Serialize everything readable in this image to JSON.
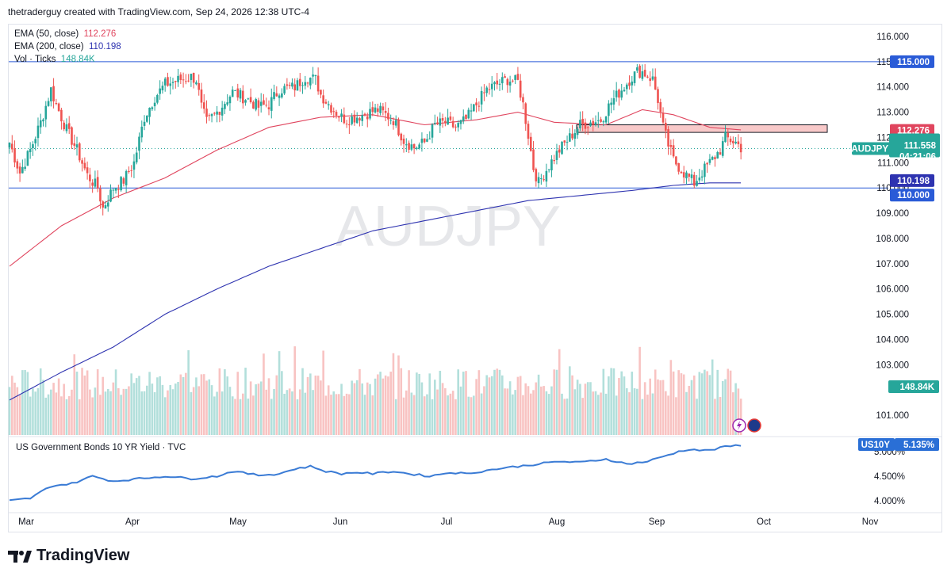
{
  "header": {
    "attribution": "thetraderguy created with TradingView.com, Sep 24, 2026 12:38 UTC-4"
  },
  "legend": {
    "ema50_label": "EMA (50, close)",
    "ema50_value": "112.276",
    "ema200_label": "EMA (200, close)",
    "ema200_value": "110.198",
    "vol_label": "Vol · Ticks",
    "vol_value": "148.84K"
  },
  "watermark": "AUDJPY",
  "price_axis": {
    "ticks": [
      "116.000",
      "115.000",
      "114.000",
      "113.000",
      "112.000",
      "111.000",
      "110.000",
      "109.000",
      "108.000",
      "107.000",
      "106.000",
      "105.000",
      "104.000",
      "103.000",
      "101.000"
    ],
    "tags": {
      "resistance": "115.000",
      "ema50": "112.276",
      "symbol": "AUDJPY",
      "last_price": "111.558",
      "countdown": "04:21:06",
      "ema200": "110.198",
      "support": "110.000",
      "volume": "148.84K"
    }
  },
  "x_axis": {
    "months": [
      "Mar",
      "Apr",
      "May",
      "Jun",
      "Jul",
      "Aug",
      "Sep",
      "Oct",
      "Nov"
    ]
  },
  "lower_pane": {
    "title": "US Government Bonds 10 YR Yield · TVC",
    "symbol": "US10Y",
    "last_value": "5.135%",
    "ticks": [
      "5.000%",
      "4.500%",
      "4.000%"
    ]
  },
  "brand": {
    "name": "TradingView"
  },
  "colors": {
    "up": "#26a69a",
    "down": "#ef5350",
    "ema50": "#e0455e",
    "ema200": "#2e33b0",
    "yield": "#3a7bd5",
    "zone": "#f8c9c9"
  },
  "chart_data": {
    "type": "candlestick",
    "symbol": "AUDJPY",
    "ylim": [
      100.3,
      116.6
    ],
    "levels": [
      115.0,
      110.0
    ],
    "zone": [
      112.2,
      112.5
    ],
    "anchors": [
      [
        0,
        111.8
      ],
      [
        4,
        110.6
      ],
      [
        8,
        111.5
      ],
      [
        12,
        112.6
      ],
      [
        16,
        113.9
      ],
      [
        18,
        113.3
      ],
      [
        22,
        112.3
      ],
      [
        26,
        111.5
      ],
      [
        30,
        110.5
      ],
      [
        34,
        110.0
      ],
      [
        36,
        109.2
      ],
      [
        40,
        110.0
      ],
      [
        44,
        110.3
      ],
      [
        48,
        111.0
      ],
      [
        52,
        112.8
      ],
      [
        56,
        113.6
      ],
      [
        60,
        114.1
      ],
      [
        66,
        114.3
      ],
      [
        70,
        114.4
      ],
      [
        72,
        114.3
      ],
      [
        74,
        113.2
      ],
      [
        76,
        112.6
      ],
      [
        80,
        113.0
      ],
      [
        86,
        113.8
      ],
      [
        90,
        113.6
      ],
      [
        92,
        113.5
      ],
      [
        96,
        113.2
      ],
      [
        100,
        113.3
      ],
      [
        104,
        113.9
      ],
      [
        110,
        114.0
      ],
      [
        114,
        114.4
      ],
      [
        118,
        114.3
      ],
      [
        120,
        113.7
      ],
      [
        124,
        113.2
      ],
      [
        128,
        112.8
      ],
      [
        130,
        112.7
      ],
      [
        136,
        112.9
      ],
      [
        142,
        113.1
      ],
      [
        148,
        112.7
      ],
      [
        152,
        111.9
      ],
      [
        156,
        111.6
      ],
      [
        160,
        111.8
      ],
      [
        164,
        112.5
      ],
      [
        168,
        112.6
      ],
      [
        172,
        112.4
      ],
      [
        176,
        112.7
      ],
      [
        180,
        113.3
      ],
      [
        184,
        113.9
      ],
      [
        188,
        114.1
      ],
      [
        192,
        114.3
      ],
      [
        196,
        114.2
      ],
      [
        198,
        113.3
      ],
      [
        200,
        112.1
      ],
      [
        202,
        110.8
      ],
      [
        204,
        110.2
      ],
      [
        208,
        110.9
      ],
      [
        212,
        111.5
      ],
      [
        216,
        112.0
      ],
      [
        220,
        112.5
      ],
      [
        224,
        112.6
      ],
      [
        228,
        112.7
      ],
      [
        232,
        113.4
      ],
      [
        236,
        113.9
      ],
      [
        240,
        114.4
      ],
      [
        242,
        114.6
      ],
      [
        244,
        114.6
      ],
      [
        248,
        114.3
      ],
      [
        250,
        113.5
      ],
      [
        252,
        112.4
      ],
      [
        254,
        111.7
      ],
      [
        256,
        111.1
      ],
      [
        260,
        110.6
      ],
      [
        264,
        110.2
      ],
      [
        266,
        110.5
      ],
      [
        270,
        111.0
      ],
      [
        274,
        111.5
      ],
      [
        276,
        112.0
      ],
      [
        280,
        111.8
      ],
      [
        282,
        111.6
      ]
    ],
    "ema50": [
      [
        0,
        106.9
      ],
      [
        20,
        108.5
      ],
      [
        40,
        109.6
      ],
      [
        60,
        110.4
      ],
      [
        80,
        111.5
      ],
      [
        100,
        112.4
      ],
      [
        120,
        112.8
      ],
      [
        140,
        112.9
      ],
      [
        160,
        112.5
      ],
      [
        180,
        112.7
      ],
      [
        196,
        113.0
      ],
      [
        210,
        112.6
      ],
      [
        230,
        112.5
      ],
      [
        244,
        113.1
      ],
      [
        256,
        112.9
      ],
      [
        270,
        112.4
      ],
      [
        282,
        112.3
      ]
    ],
    "ema200": [
      [
        0,
        101.6
      ],
      [
        20,
        102.7
      ],
      [
        40,
        103.7
      ],
      [
        60,
        105.0
      ],
      [
        80,
        106.0
      ],
      [
        100,
        106.9
      ],
      [
        120,
        107.6
      ],
      [
        140,
        108.3
      ],
      [
        160,
        108.7
      ],
      [
        180,
        109.1
      ],
      [
        200,
        109.5
      ],
      [
        220,
        109.7
      ],
      [
        240,
        109.9
      ],
      [
        256,
        110.1
      ],
      [
        270,
        110.2
      ],
      [
        282,
        110.2
      ]
    ],
    "volume_units": "ticks",
    "last_volume": 148840,
    "us10y": {
      "ylim": [
        3.7,
        5.3
      ],
      "points": [
        [
          0,
          4.0
        ],
        [
          8,
          4.05
        ],
        [
          16,
          4.3
        ],
        [
          24,
          4.35
        ],
        [
          32,
          4.5
        ],
        [
          40,
          4.4
        ],
        [
          50,
          4.45
        ],
        [
          60,
          4.5
        ],
        [
          70,
          4.45
        ],
        [
          80,
          4.5
        ],
        [
          86,
          4.6
        ],
        [
          96,
          4.52
        ],
        [
          104,
          4.55
        ],
        [
          110,
          4.65
        ],
        [
          116,
          4.7
        ],
        [
          122,
          4.6
        ],
        [
          128,
          4.55
        ],
        [
          134,
          4.58
        ],
        [
          140,
          4.55
        ],
        [
          148,
          4.6
        ],
        [
          154,
          4.55
        ],
        [
          162,
          4.5
        ],
        [
          170,
          4.58
        ],
        [
          176,
          4.55
        ],
        [
          182,
          4.6
        ],
        [
          188,
          4.65
        ],
        [
          196,
          4.7
        ],
        [
          204,
          4.75
        ],
        [
          212,
          4.8
        ],
        [
          220,
          4.78
        ],
        [
          230,
          4.85
        ],
        [
          238,
          4.75
        ],
        [
          246,
          4.8
        ],
        [
          252,
          4.9
        ],
        [
          258,
          5.0
        ],
        [
          262,
          5.05
        ],
        [
          268,
          5.02
        ],
        [
          272,
          5.05
        ],
        [
          276,
          5.1
        ],
        [
          282,
          5.135
        ]
      ]
    }
  }
}
